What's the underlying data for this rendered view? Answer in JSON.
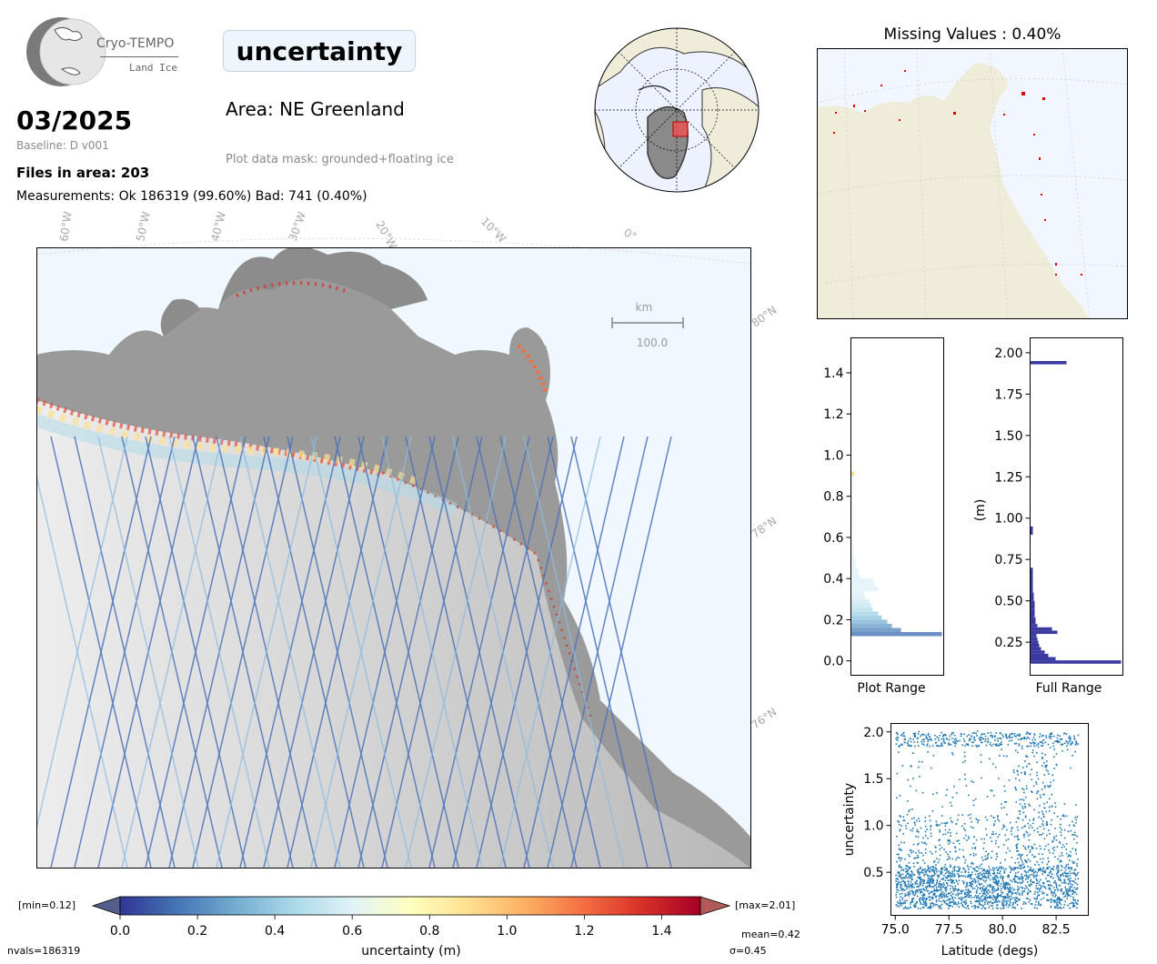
{
  "logo": {
    "name": "Cryo-TEMPO",
    "subtitle": "Land Ice"
  },
  "header": {
    "date": "03/2025",
    "baseline": "Baseline: D v001",
    "files": "Files in area: 203",
    "measurements": "Measurements: Ok 186319 (99.60%) Bad: 741 (0.40%)",
    "parameter": "uncertainty",
    "area": "Area: NE Greenland",
    "mask": "Plot data mask: grounded+floating ice"
  },
  "main_map": {
    "lon_labels": [
      "60°W",
      "50°W",
      "40°W",
      "30°W",
      "20°W",
      "10°W",
      "0°"
    ],
    "lat_labels": [
      "80°N",
      "78°N",
      "76°N"
    ],
    "scale_unit": "km",
    "scale_value": "100.0"
  },
  "missing_map": {
    "title": "Missing Values : 0.40%"
  },
  "colorbar": {
    "ticks": [
      "0.0",
      "0.2",
      "0.4",
      "0.6",
      "0.8",
      "1.0",
      "1.2",
      "1.4"
    ],
    "label": "uncertainty (m)",
    "min_label": "[min=0.12]",
    "max_label": "[max=2.01]",
    "nvals": "nvals=186319",
    "mean": "mean=0.42",
    "sigma": "σ=0.45",
    "colormap": "RdYlBu_r"
  },
  "hist_plot_range": {
    "xlabel": "Plot Range",
    "ticks": [
      "0.0",
      "0.2",
      "0.4",
      "0.6",
      "0.8",
      "1.0",
      "1.2",
      "1.4"
    ]
  },
  "hist_full_range": {
    "xlabel": "Full Range",
    "ylabel": "(m)",
    "ticks": [
      "0.25",
      "0.50",
      "0.75",
      "1.00",
      "1.25",
      "1.50",
      "1.75",
      "2.00"
    ],
    "color": "#3a3aa0"
  },
  "chart_data": [
    {
      "type": "bar",
      "orientation": "horizontal",
      "xlabel": "Plot Range",
      "ylim": [
        -0.07,
        1.57
      ],
      "bins": [
        0.12,
        0.14,
        0.16,
        0.18,
        0.2,
        0.22,
        0.24,
        0.26,
        0.28,
        0.3,
        0.32,
        0.34,
        0.36,
        0.38,
        0.4,
        0.42,
        0.45,
        0.5,
        0.55,
        0.6,
        0.9
      ],
      "relative_counts": [
        1.0,
        0.55,
        0.45,
        0.4,
        0.34,
        0.3,
        0.24,
        0.22,
        0.2,
        0.16,
        0.14,
        0.3,
        0.26,
        0.25,
        0.1,
        0.08,
        0.05,
        0.03,
        0.02,
        0.02,
        0.04
      ]
    },
    {
      "type": "bar",
      "orientation": "horizontal",
      "xlabel": "Full Range",
      "ylabel": "(m)",
      "ylim": [
        0.05,
        2.09
      ],
      "bins": [
        0.12,
        0.14,
        0.16,
        0.18,
        0.2,
        0.22,
        0.24,
        0.26,
        0.28,
        0.3,
        0.32,
        0.34,
        0.36,
        0.4,
        0.45,
        0.5,
        0.55,
        0.6,
        0.65,
        0.9,
        1.93
      ],
      "relative_counts": [
        1.0,
        0.28,
        0.2,
        0.16,
        0.12,
        0.1,
        0.09,
        0.08,
        0.07,
        0.3,
        0.24,
        0.08,
        0.06,
        0.05,
        0.05,
        0.04,
        0.03,
        0.03,
        0.03,
        0.03,
        0.4
      ]
    },
    {
      "type": "scatter",
      "xlabel": "Latitude (degs)",
      "ylabel": "uncertainty",
      "xlim": [
        74.8,
        84.0
      ],
      "ylim": [
        0.04,
        2.09
      ],
      "xticks": [
        "75.0",
        "77.5",
        "80.0",
        "82.5"
      ],
      "yticks": [
        "0.5",
        "1.0",
        "1.5",
        "2.0"
      ],
      "color": "#1f77b4"
    }
  ]
}
